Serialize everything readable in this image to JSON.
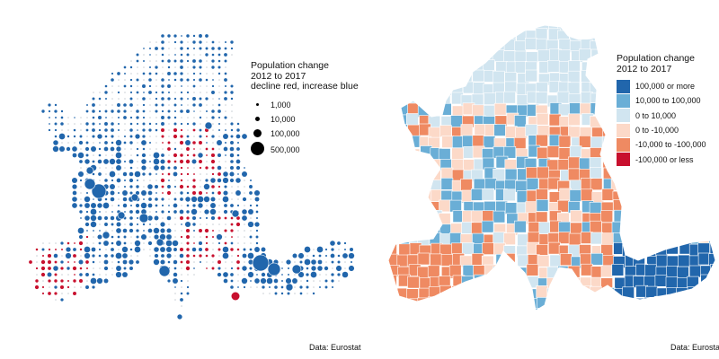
{
  "left_map": {
    "legend": {
      "title_lines": [
        "Population change",
        "2012 to 2017",
        "decline red, increase blue"
      ],
      "sizes": [
        {
          "label": "1,000"
        },
        {
          "label": "10,000"
        },
        {
          "label": "100,000"
        },
        {
          "label": "500,000"
        }
      ]
    },
    "caption": "Data: Eurostat",
    "colors": {
      "increase": "#2166ac",
      "decline": "#c8102e",
      "neutral": "#c8cdd4"
    }
  },
  "right_map": {
    "legend": {
      "title_lines": [
        "Population change",
        "2012 to 2017"
      ],
      "classes": [
        {
          "label": "100,000 or more",
          "color": "#2166ac"
        },
        {
          "label": "10,000 to 100,000",
          "color": "#6aaed6"
        },
        {
          "label": "0 to 10,000",
          "color": "#d1e5f0"
        },
        {
          "label": "0 to -10,000",
          "color": "#fcd9c8"
        },
        {
          "label": "-10,000 to -100,000",
          "color": "#ef8a62"
        },
        {
          "label": "-100,000 or less",
          "color": "#c8102e"
        }
      ]
    },
    "caption": "Data: Eurostat"
  }
}
